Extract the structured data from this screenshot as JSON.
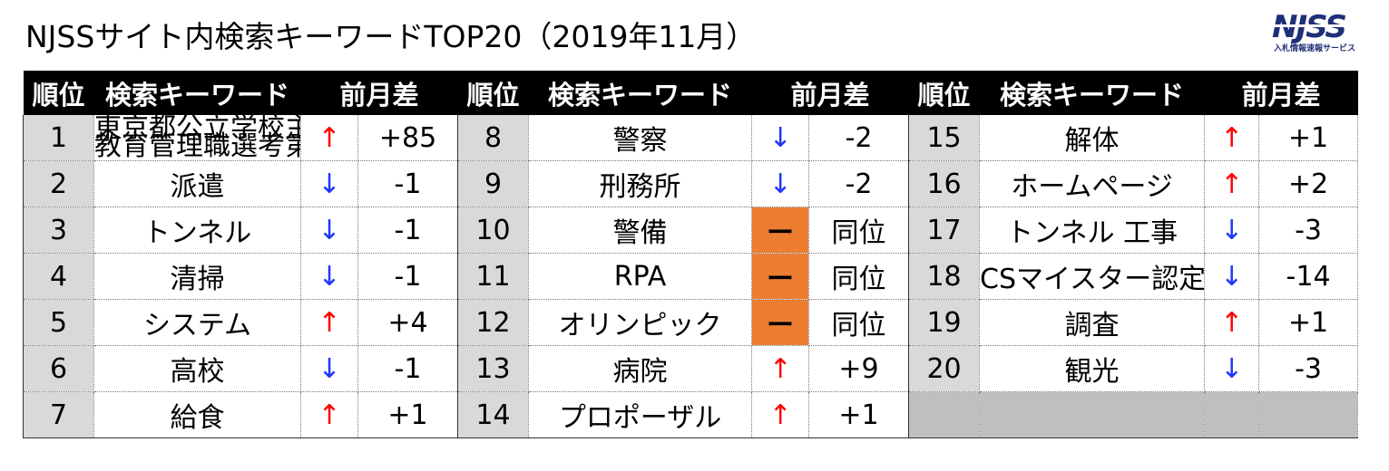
{
  "title": "NJSSサイト内検索キーワードTOP20（2019年11月）",
  "logo": {
    "main": "NJSS",
    "sub": "入札情報速報サービス"
  },
  "headers": {
    "rank": "順位",
    "keyword": "検索キーワード",
    "diff": "前月差"
  },
  "colors": {
    "up": "#ff0000",
    "down": "#1f35ff",
    "same": "#ed7d31",
    "rank_bg": "#d9d9d9"
  },
  "columns": [
    [
      {
        "rank": "1",
        "keyword": "東京都公立学校主任教諭選考・教育管理職選考第一次選考",
        "keyword_line1": "東京都公立学校主任教諭選考・",
        "keyword_line2": "教育管理職選考第一次選考",
        "arrow": "↑",
        "trend": "up",
        "diff": "+85"
      },
      {
        "rank": "2",
        "keyword": "派遣",
        "arrow": "↓",
        "trend": "down",
        "diff": "-1"
      },
      {
        "rank": "3",
        "keyword": "トンネル",
        "arrow": "↓",
        "trend": "down",
        "diff": "-1"
      },
      {
        "rank": "4",
        "keyword": "清掃",
        "arrow": "↓",
        "trend": "down",
        "diff": "-1"
      },
      {
        "rank": "5",
        "keyword": "システム",
        "arrow": "↑",
        "trend": "up",
        "diff": "+4"
      },
      {
        "rank": "6",
        "keyword": "高校",
        "arrow": "↓",
        "trend": "down",
        "diff": "-1"
      },
      {
        "rank": "7",
        "keyword": "給食",
        "arrow": "↑",
        "trend": "up",
        "diff": "+1"
      }
    ],
    [
      {
        "rank": "8",
        "keyword": "警察",
        "arrow": "↓",
        "trend": "down",
        "diff": "-2"
      },
      {
        "rank": "9",
        "keyword": "刑務所",
        "arrow": "↓",
        "trend": "down",
        "diff": "-2"
      },
      {
        "rank": "10",
        "keyword": "警備",
        "arrow": "ー",
        "trend": "same",
        "diff": "同位"
      },
      {
        "rank": "11",
        "keyword": "RPA",
        "arrow": "ー",
        "trend": "same",
        "diff": "同位"
      },
      {
        "rank": "12",
        "keyword": "オリンピック",
        "arrow": "ー",
        "trend": "same",
        "diff": "同位"
      },
      {
        "rank": "13",
        "keyword": "病院",
        "arrow": "↑",
        "trend": "up",
        "diff": "+9"
      },
      {
        "rank": "14",
        "keyword": "プロポーザル",
        "arrow": "↑",
        "trend": "up",
        "diff": "+1"
      }
    ],
    [
      {
        "rank": "15",
        "keyword": "解体",
        "arrow": "↑",
        "trend": "up",
        "diff": "+1"
      },
      {
        "rank": "16",
        "keyword": "ホームページ",
        "arrow": "↑",
        "trend": "up",
        "diff": "+2"
      },
      {
        "rank": "17",
        "keyword": "トンネル 工事",
        "arrow": "↓",
        "trend": "down",
        "diff": "-3"
      },
      {
        "rank": "18",
        "keyword": "CSマイスター認定制度",
        "arrow": "↓",
        "trend": "down",
        "diff": "-14"
      },
      {
        "rank": "19",
        "keyword": "調査",
        "arrow": "↑",
        "trend": "up",
        "diff": "+1"
      },
      {
        "rank": "20",
        "keyword": "観光",
        "arrow": "↓",
        "trend": "down",
        "diff": "-3"
      }
    ]
  ]
}
